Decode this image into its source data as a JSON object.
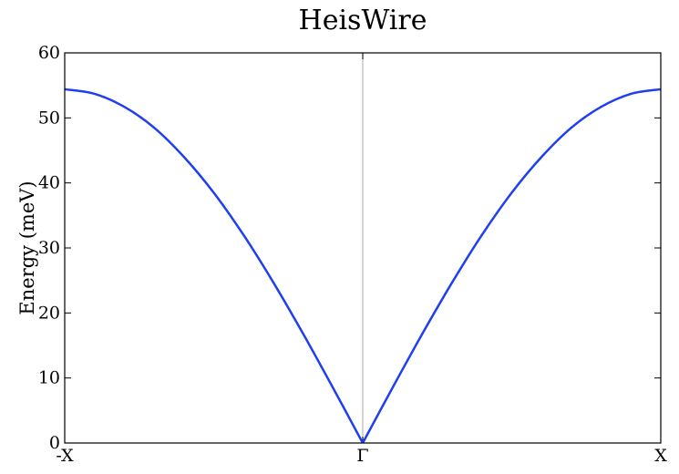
{
  "chart_data": {
    "type": "line",
    "title": "HeisWire",
    "xlabel": "",
    "ylabel": "Energy (meV)",
    "ylim": [
      0,
      60
    ],
    "yticks": [
      0,
      10,
      20,
      30,
      40,
      50,
      60
    ],
    "ytick_labels": [
      "0",
      "10",
      "20",
      "30",
      "40",
      "50",
      "60"
    ],
    "xlim": [
      -1,
      1
    ],
    "xticks": [
      {
        "value": -1,
        "label": "-X"
      },
      {
        "value": 0,
        "label": "Γ"
      },
      {
        "value": 1,
        "label": "X"
      }
    ],
    "grid": false,
    "vline_at": 0,
    "series": [
      {
        "color": "#1f3ff0",
        "x": [
          -1,
          -0.9,
          -0.8,
          -0.7,
          -0.6,
          -0.5,
          -0.4,
          -0.3,
          -0.2,
          -0.1,
          0,
          0.1,
          0.2,
          0.3,
          0.4,
          0.5,
          0.6,
          0.7,
          0.8,
          0.9,
          1
        ],
        "y": [
          54.4,
          53.7,
          51.7,
          48.5,
          44.0,
          38.5,
          32.0,
          24.7,
          16.8,
          8.5,
          0,
          8.5,
          16.8,
          24.7,
          32.0,
          38.5,
          44.0,
          48.5,
          51.7,
          53.7,
          54.4
        ]
      }
    ]
  }
}
